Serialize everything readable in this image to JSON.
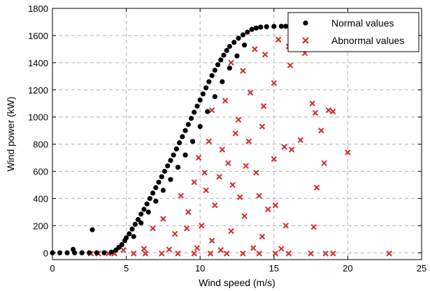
{
  "chart_data": {
    "type": "scatter",
    "title": "",
    "xlabel": "Wind speed (m/s)",
    "ylabel": "Wind power (kW)",
    "xlim": [
      0,
      25
    ],
    "ylim": [
      -50,
      1800
    ],
    "xticks": [
      "0",
      "5",
      "10",
      "15",
      "20",
      "25"
    ],
    "yticks": [
      "0",
      "200",
      "400",
      "600",
      "800",
      "1000",
      "1200",
      "1400",
      "1600",
      "1800"
    ],
    "grid": true,
    "legend_position": "top-right",
    "series": [
      {
        "name": "Normal values",
        "marker": "dot",
        "color": "#000000",
        "points": [
          [
            0.0,
            0
          ],
          [
            0.5,
            0
          ],
          [
            1.0,
            0
          ],
          [
            1.5,
            0
          ],
          [
            2.0,
            0
          ],
          [
            2.5,
            0
          ],
          [
            3.0,
            0
          ],
          [
            3.5,
            0
          ],
          [
            4.0,
            5
          ],
          [
            1.4,
            25
          ],
          [
            2.7,
            170
          ],
          [
            4.3,
            20
          ],
          [
            4.5,
            40
          ],
          [
            4.7,
            60
          ],
          [
            4.9,
            90
          ],
          [
            5.0,
            110
          ],
          [
            5.2,
            140
          ],
          [
            5.4,
            175
          ],
          [
            5.6,
            210
          ],
          [
            5.8,
            245
          ],
          [
            6.0,
            285
          ],
          [
            6.2,
            320
          ],
          [
            6.4,
            360
          ],
          [
            6.6,
            400
          ],
          [
            6.8,
            440
          ],
          [
            7.0,
            480
          ],
          [
            7.2,
            520
          ],
          [
            7.4,
            560
          ],
          [
            7.6,
            600
          ],
          [
            7.8,
            640
          ],
          [
            8.0,
            680
          ],
          [
            8.2,
            720
          ],
          [
            8.4,
            765
          ],
          [
            8.6,
            810
          ],
          [
            8.8,
            855
          ],
          [
            9.0,
            900
          ],
          [
            9.2,
            945
          ],
          [
            9.4,
            990
          ],
          [
            9.6,
            1035
          ],
          [
            9.8,
            1080
          ],
          [
            10.0,
            1125
          ],
          [
            10.2,
            1170
          ],
          [
            10.4,
            1215
          ],
          [
            10.6,
            1260
          ],
          [
            10.8,
            1305
          ],
          [
            11.0,
            1345
          ],
          [
            11.2,
            1385
          ],
          [
            11.4,
            1420
          ],
          [
            11.6,
            1455
          ],
          [
            11.8,
            1490
          ],
          [
            12.0,
            1520
          ],
          [
            12.3,
            1550
          ],
          [
            12.6,
            1580
          ],
          [
            12.9,
            1605
          ],
          [
            13.2,
            1625
          ],
          [
            13.5,
            1645
          ],
          [
            13.8,
            1655
          ],
          [
            14.1,
            1662
          ],
          [
            14.5,
            1665
          ],
          [
            15.0,
            1667
          ],
          [
            15.5,
            1668
          ],
          [
            15.8,
            1668
          ],
          [
            5.5,
            120
          ],
          [
            6.0,
            220
          ],
          [
            6.5,
            300
          ],
          [
            7.0,
            380
          ],
          [
            7.5,
            460
          ],
          [
            8.0,
            540
          ],
          [
            8.5,
            630
          ],
          [
            9.0,
            720
          ],
          [
            9.5,
            820
          ],
          [
            10.0,
            930
          ],
          [
            10.5,
            1040
          ],
          [
            11.0,
            1150
          ],
          [
            11.5,
            1260
          ],
          [
            12.0,
            1360
          ],
          [
            12.5,
            1450
          ],
          [
            13.0,
            1530
          ]
        ]
      },
      {
        "name": "Abnormal values",
        "marker": "x",
        "color": "#d42a2a",
        "points": [
          [
            2.6,
            -5
          ],
          [
            3.1,
            -5
          ],
          [
            3.8,
            -5
          ],
          [
            4.2,
            -5
          ],
          [
            5.5,
            -5
          ],
          [
            6.3,
            -5
          ],
          [
            7.4,
            -5
          ],
          [
            8.5,
            -5
          ],
          [
            9.6,
            -5
          ],
          [
            10.7,
            -5
          ],
          [
            11.8,
            -5
          ],
          [
            12.9,
            -5
          ],
          [
            14.0,
            -5
          ],
          [
            15.1,
            -5
          ],
          [
            16.0,
            -5
          ],
          [
            17.5,
            -5
          ],
          [
            18.5,
            -5
          ],
          [
            19.0,
            -5
          ],
          [
            22.8,
            -5
          ],
          [
            4.8,
            20
          ],
          [
            6.2,
            30
          ],
          [
            7.9,
            25
          ],
          [
            9.8,
            35
          ],
          [
            11.4,
            20
          ],
          [
            13.6,
            35
          ],
          [
            15.5,
            30
          ],
          [
            6.8,
            180
          ],
          [
            7.5,
            250
          ],
          [
            8.3,
            140
          ],
          [
            9.2,
            300
          ],
          [
            10.1,
            200
          ],
          [
            11.0,
            350
          ],
          [
            12.1,
            160
          ],
          [
            13.0,
            270
          ],
          [
            14.2,
            120
          ],
          [
            8.7,
            420
          ],
          [
            9.6,
            520
          ],
          [
            10.4,
            460
          ],
          [
            11.3,
            560
          ],
          [
            12.2,
            500
          ],
          [
            13.1,
            640
          ],
          [
            14.0,
            420
          ],
          [
            15.1,
            350
          ],
          [
            9.9,
            700
          ],
          [
            10.6,
            820
          ],
          [
            11.5,
            760
          ],
          [
            12.4,
            880
          ],
          [
            13.3,
            820
          ],
          [
            14.2,
            930
          ],
          [
            15.0,
            690
          ],
          [
            16.2,
            760
          ],
          [
            10.8,
            1050
          ],
          [
            11.7,
            1120
          ],
          [
            12.6,
            980
          ],
          [
            13.4,
            1180
          ],
          [
            14.3,
            1080
          ],
          [
            15.0,
            1250
          ],
          [
            16.1,
            1380
          ],
          [
            12.1,
            1400
          ],
          [
            12.9,
            1340
          ],
          [
            13.7,
            1500
          ],
          [
            14.4,
            1460
          ],
          [
            15.3,
            1570
          ],
          [
            16.0,
            1520
          ],
          [
            16.8,
            1620
          ],
          [
            17.1,
            1470
          ],
          [
            17.4,
            1620
          ],
          [
            17.6,
            1100
          ],
          [
            17.8,
            1030
          ],
          [
            18.2,
            900
          ],
          [
            18.7,
            1050
          ],
          [
            19.0,
            1040
          ],
          [
            20.0,
            740
          ],
          [
            17.9,
            480
          ],
          [
            17.7,
            190
          ],
          [
            16.8,
            830
          ],
          [
            18.4,
            660
          ],
          [
            15.7,
            780
          ],
          [
            10.3,
            590
          ],
          [
            11.9,
            660
          ],
          [
            13.8,
            590
          ],
          [
            14.6,
            320
          ],
          [
            12.7,
            410
          ],
          [
            9.1,
            180
          ],
          [
            10.8,
            90
          ],
          [
            15.8,
            200
          ]
        ]
      }
    ]
  }
}
